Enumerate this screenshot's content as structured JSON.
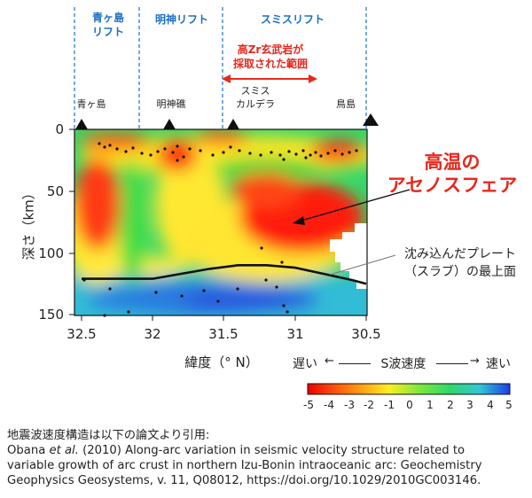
{
  "header": {
    "rifts": [
      {
        "line1": "青ヶ島",
        "line2": "リフト"
      },
      {
        "line1": "明神リフト",
        "line2": ""
      },
      {
        "line1": "スミスリフト",
        "line2": ""
      }
    ],
    "zr_note": {
      "line1": "高Zr玄武岩が",
      "line2": "採取された範囲"
    },
    "stations": [
      {
        "line1": "青ヶ島",
        "line2": ""
      },
      {
        "line1": "明神礁",
        "line2": ""
      },
      {
        "line1": "スミス",
        "line2": "カルデラ"
      },
      {
        "line1": "鳥島",
        "line2": ""
      }
    ]
  },
  "annotations": {
    "asthenosphere": {
      "line1": "高温の",
      "line2": "アセノスフェア"
    },
    "slab": {
      "line1": "沈み込んだプレート",
      "line2": "（スラブ）の最上面"
    }
  },
  "chart_data": {
    "type": "heatmap",
    "xlabel": "緯度（° N）",
    "ylabel": "深さ（km）",
    "xlim": [
      32.5,
      30.5
    ],
    "ylim": [
      0,
      150
    ],
    "x_ticks": [
      "32.5",
      "32",
      "31.5",
      "31",
      "30.5"
    ],
    "y_ticks": [
      "0",
      "50",
      "100",
      "150"
    ],
    "slab_top": {
      "lat": [
        32.5,
        32.2,
        32.0,
        31.8,
        31.6,
        31.4,
        31.2,
        31.0,
        30.8,
        30.6,
        30.5
      ],
      "depth": [
        121,
        121,
        121,
        117,
        113,
        110,
        110,
        112,
        117,
        122,
        125
      ]
    },
    "colorbar": {
      "label": "S波速度",
      "slow_label": "遅い",
      "fast_label": "速い",
      "arrow_left": "←",
      "arrow_right": "→",
      "ticks": [
        "-5",
        "-4",
        "-3",
        "-2",
        "-1",
        "0",
        "1",
        "2",
        "3",
        "4",
        "5"
      ],
      "range": [
        -5,
        5
      ]
    },
    "colors": {
      "red": "#ff1a1a",
      "yellow": "#ffee22",
      "green": "#33dd33",
      "cyan": "#33cccc",
      "blue": "#2244ee"
    }
  },
  "citation": {
    "intro": "地震波速度構造は以下の論文より引用:",
    "line1_pre": "Obana ",
    "line1_italic": "et al.",
    "line1_post": " (2010) Along-arc variation in seismic velocity structure related to",
    "line2": "variable growth of arc crust in northern Izu-Bonin intraoceanic arc: Geochemistry",
    "line3": "Geophysics Geosystems, v. 11, Q08012, https://doi.org/10.1029/2010GC003146."
  }
}
